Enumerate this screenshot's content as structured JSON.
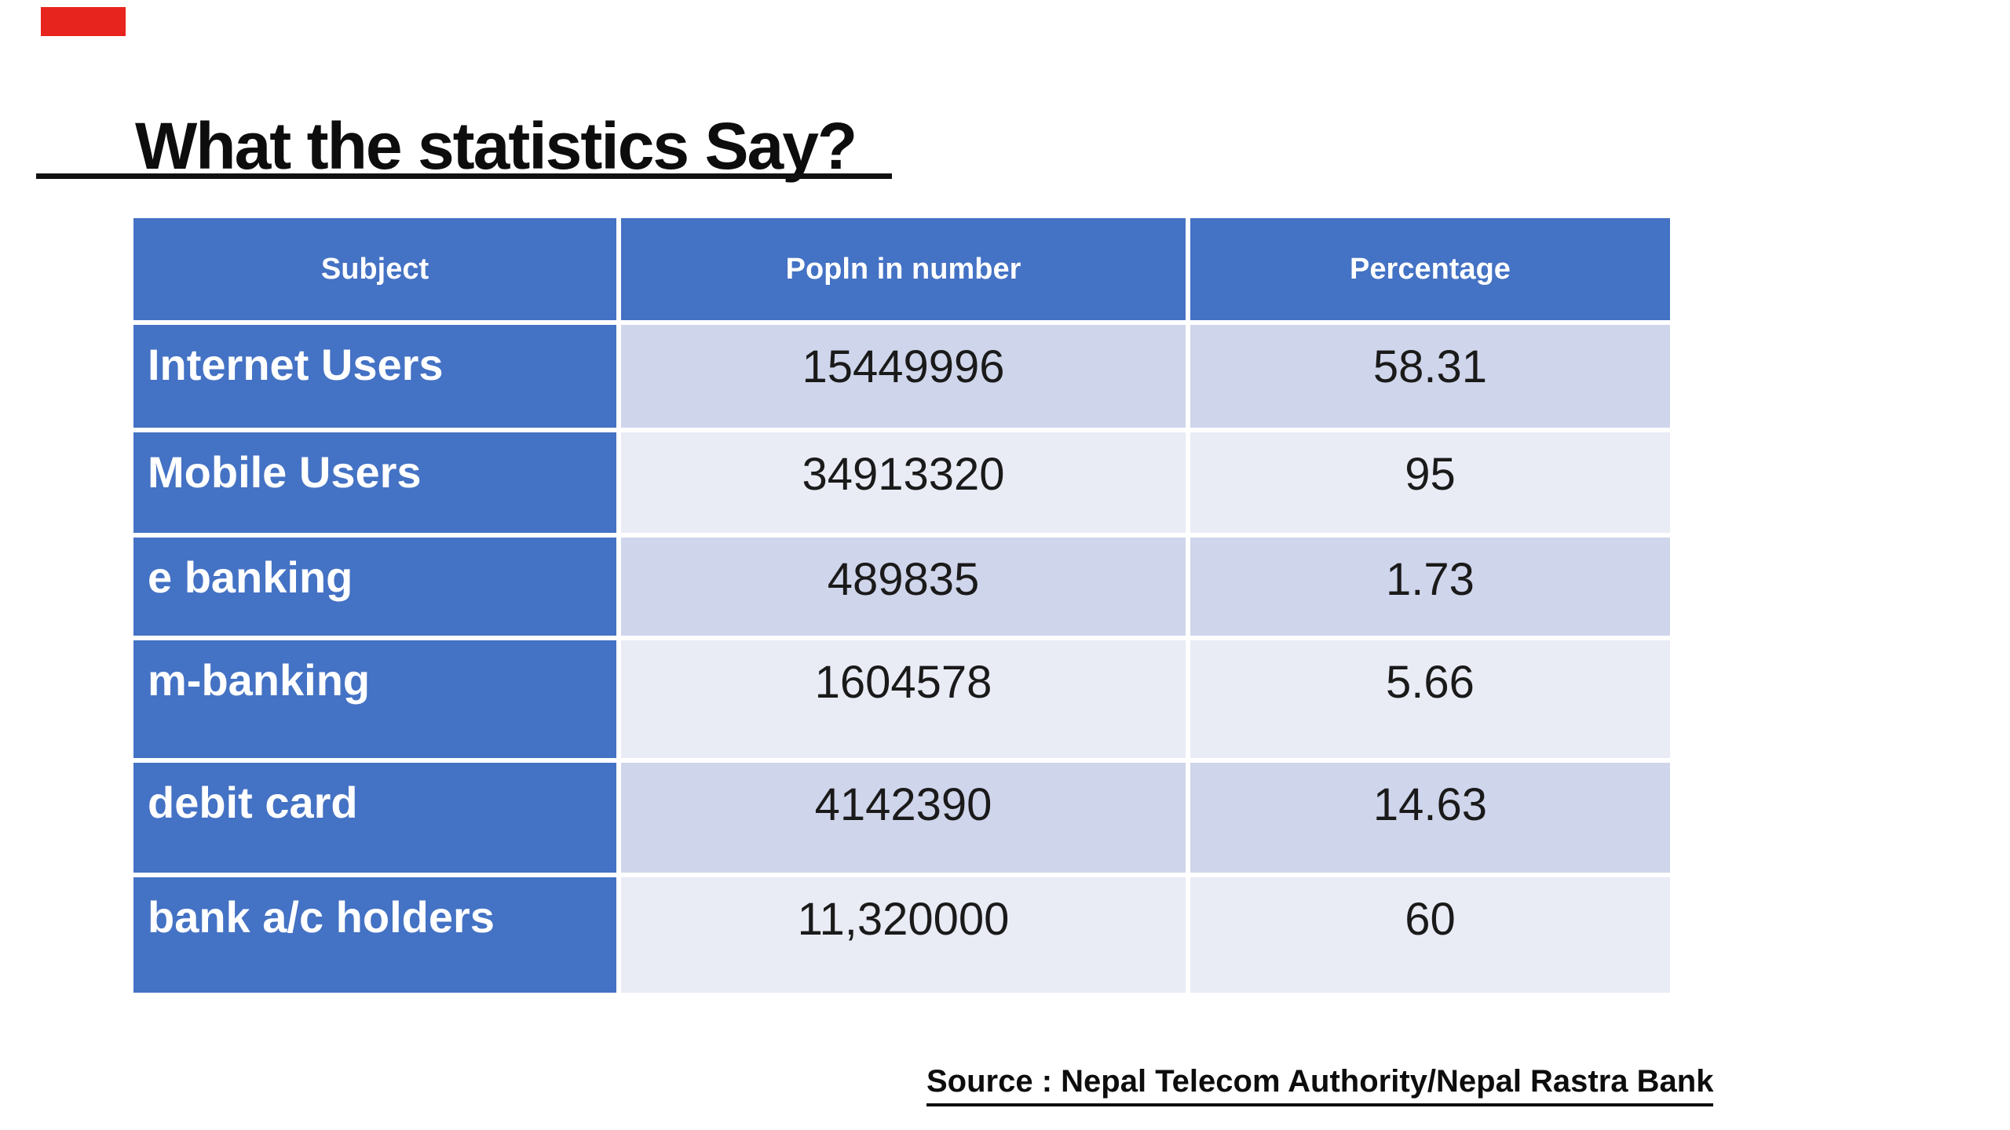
{
  "slide": {
    "accent_red": "#e8241e",
    "title": "What the statistics Say?",
    "source": "Source : Nepal Telecom Authority/Nepal Rastra Bank",
    "table": {
      "headers": [
        "Subject",
        "Popln in number",
        "Percentage"
      ],
      "rows": [
        {
          "subject": "Internet Users",
          "popln": "15449996",
          "percentage": "58.31"
        },
        {
          "subject": "Mobile Users",
          "popln": "34913320",
          "percentage": "95"
        },
        {
          "subject": "e banking",
          "popln": "489835",
          "percentage": "1.73"
        },
        {
          "subject": "m-banking",
          "popln": "1604578",
          "percentage": "5.66"
        },
        {
          "subject": "debit card",
          "popln": "4142390",
          "percentage": "14.63"
        },
        {
          "subject": "bank a/c holders",
          "popln": "11,320000",
          "percentage": "60"
        }
      ],
      "colors": {
        "header_bg": "#4472C4",
        "row_band_dark": "#CFD5EA",
        "row_band_light": "#E9EBF5",
        "header_text": "#FFFFFF",
        "data_text": "#1A1A1A"
      }
    }
  }
}
